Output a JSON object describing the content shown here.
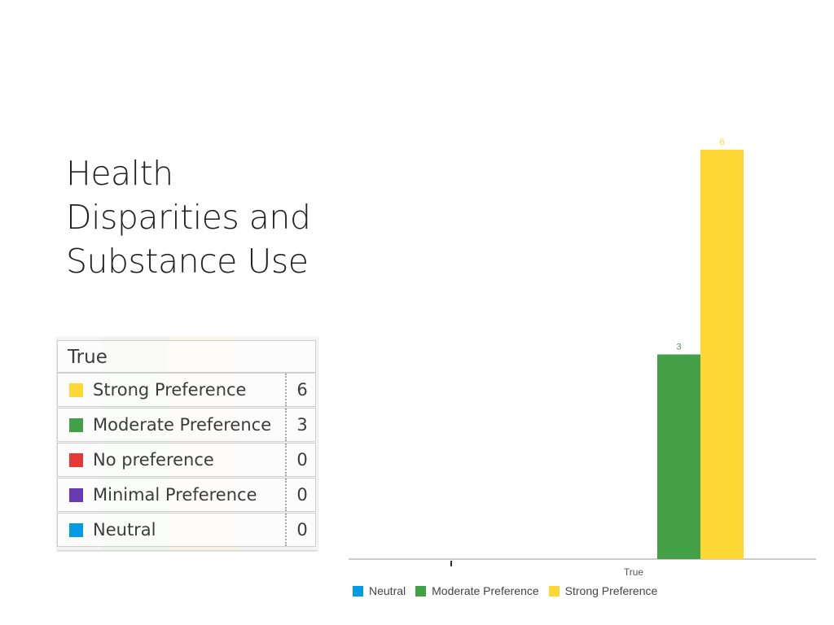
{
  "slide": {
    "title_lines": [
      "Health",
      "Disparities and",
      "Substance Use"
    ]
  },
  "summary_table": {
    "header": "True",
    "rows": [
      {
        "label": "Strong Preference",
        "count": "6",
        "color": "#fdd835"
      },
      {
        "label": "Moderate Preference",
        "count": "3",
        "color": "#43a047"
      },
      {
        "label": "No preference",
        "count": "0",
        "color": "#e53935"
      },
      {
        "label": "Minimal Preference",
        "count": "0",
        "color": "#673ab7"
      },
      {
        "label": "Neutral",
        "count": "0",
        "color": "#039be5"
      }
    ]
  },
  "chart_data": {
    "type": "bar",
    "categories": [
      "True"
    ],
    "series": [
      {
        "name": "Neutral",
        "values": [
          0
        ],
        "color": "#039be5"
      },
      {
        "name": "Moderate Preference",
        "values": [
          3
        ],
        "color": "#43a047"
      },
      {
        "name": "Strong Preference",
        "values": [
          6
        ],
        "color": "#fdd835"
      }
    ],
    "data_labels": true,
    "ylim": [
      0,
      6
    ],
    "grid": false,
    "legend_position": "bottom-left"
  }
}
